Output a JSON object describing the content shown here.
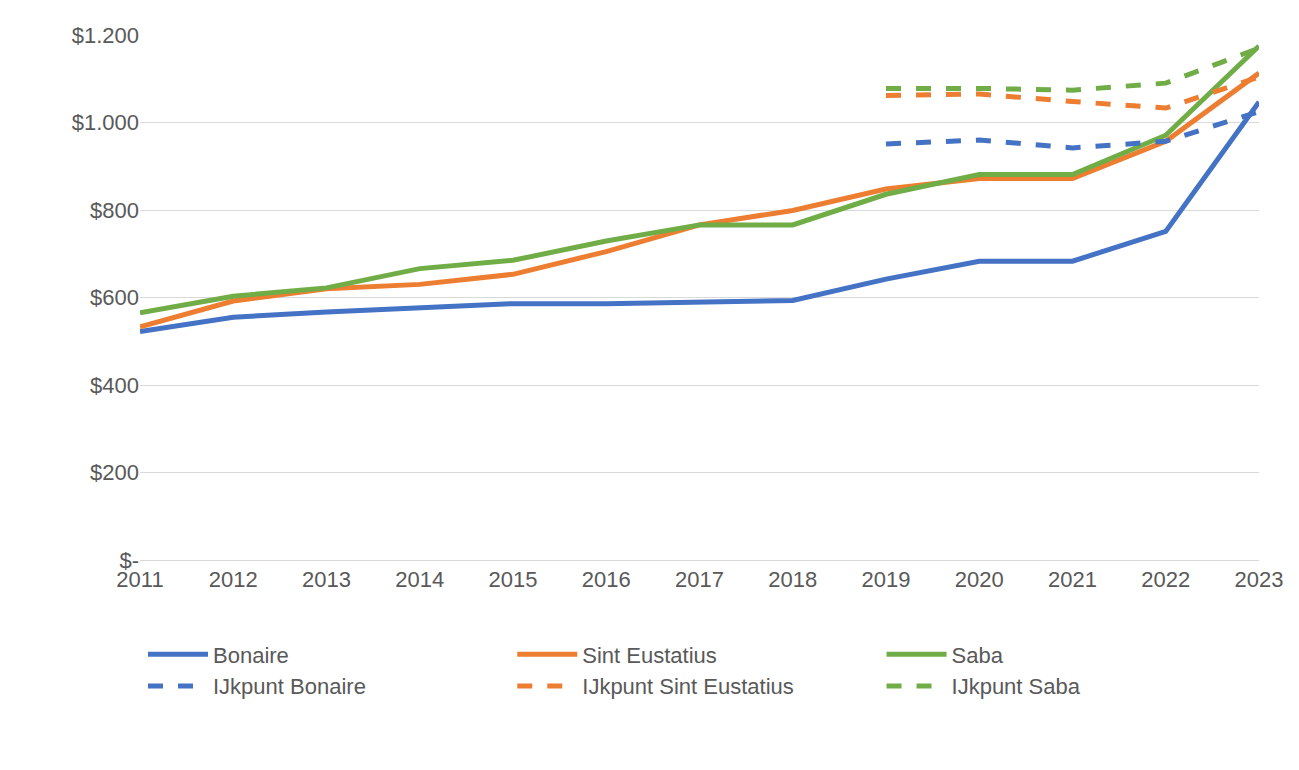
{
  "chart_data": {
    "type": "line",
    "categories": [
      "2011",
      "2012",
      "2013",
      "2014",
      "2015",
      "2016",
      "2017",
      "2018",
      "2019",
      "2020",
      "2021",
      "2022",
      "2023"
    ],
    "series": [
      {
        "name": "Bonaire",
        "color": "#4472c4",
        "line_style": "solid",
        "values": [
          522,
          555,
          567,
          577,
          586,
          586,
          589,
          593,
          642,
          683,
          683,
          751,
          1047
        ]
      },
      {
        "name": "Sint Eustatius",
        "color": "#ed7d31",
        "line_style": "solid",
        "values": [
          533,
          592,
          620,
          630,
          653,
          705,
          766,
          799,
          848,
          872,
          872,
          957,
          1113
        ]
      },
      {
        "name": "Saba",
        "color": "#70ad47",
        "line_style": "solid",
        "values": [
          565,
          603,
          622,
          666,
          685,
          729,
          766,
          766,
          836,
          881,
          881,
          971,
          1175
        ]
      },
      {
        "name": "IJkpunt Bonaire",
        "color": "#4472c4",
        "line_style": "dash",
        "values": [
          null,
          null,
          null,
          null,
          null,
          null,
          null,
          null,
          951,
          960,
          942,
          957,
          1025
        ]
      },
      {
        "name": "IJkpunt Sint Eustatius",
        "color": "#ed7d31",
        "line_style": "dash",
        "values": [
          null,
          null,
          null,
          null,
          null,
          null,
          null,
          null,
          1062,
          1065,
          1048,
          1033,
          1104
        ]
      },
      {
        "name": "IJkpunt Saba",
        "color": "#70ad47",
        "line_style": "dash",
        "values": [
          null,
          null,
          null,
          null,
          null,
          null,
          null,
          null,
          1078,
          1078,
          1074,
          1090,
          1170
        ]
      }
    ],
    "ylim": [
      0,
      1200
    ],
    "yticks": [
      {
        "value": 0,
        "label": "$-"
      },
      {
        "value": 200,
        "label": "$200"
      },
      {
        "value": 400,
        "label": "$400"
      },
      {
        "value": 600,
        "label": "$600"
      },
      {
        "value": 800,
        "label": "$800"
      },
      {
        "value": 1000,
        "label": "$1.000"
      },
      {
        "value": 1200,
        "label": "$1.200"
      }
    ],
    "grid": true,
    "legend": "bottom"
  }
}
